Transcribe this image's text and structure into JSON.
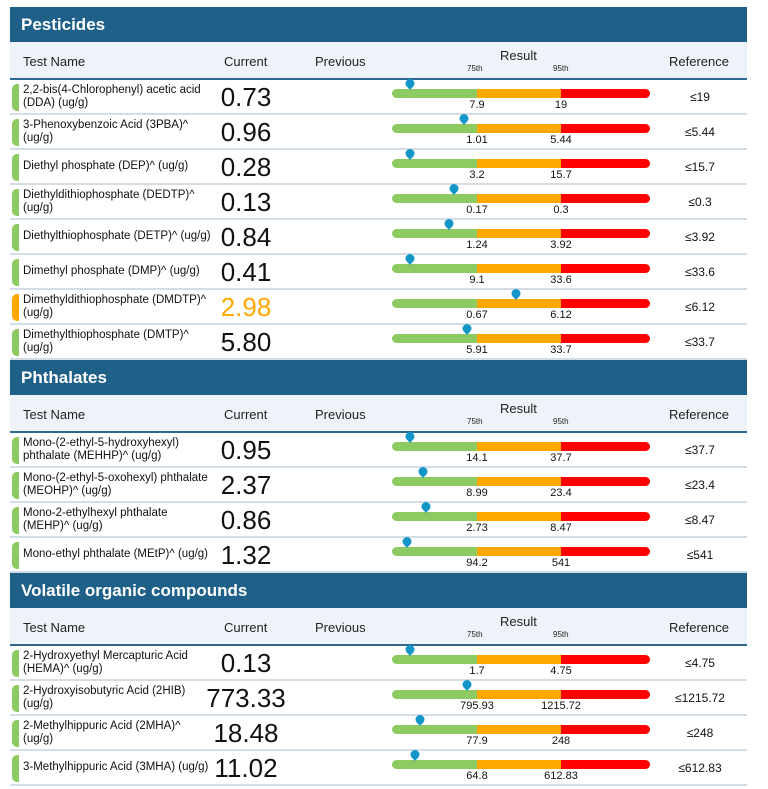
{
  "columns": {
    "test_name": "Test Name",
    "current": "Current",
    "previous": "Previous",
    "result": "Result",
    "p75": "75th",
    "p95": "95th",
    "reference": "Reference"
  },
  "colors": {
    "normal": "#8dcb62",
    "elevated": "#ffa800",
    "high": "#ff0000",
    "marker": "#1596c8",
    "header": "#1f6089"
  },
  "sections": [
    {
      "title": "Pesticides",
      "rows": [
        {
          "name": "2,2-bis(4-Chlorophenyl) acetic acid (DDA) (ug/g)",
          "current": "0.73",
          "p75": "7.9",
          "p95": "19",
          "reference": "≤19",
          "status": "normal",
          "marker": 0.07
        },
        {
          "name": "3-Phenoxybenzoic Acid (3PBA)^ (ug/g)",
          "current": "0.96",
          "p75": "1.01",
          "p95": "5.44",
          "reference": "≤5.44",
          "status": "normal",
          "marker": 0.28
        },
        {
          "name": "Diethyl phosphate (DEP)^ (ug/g)",
          "current": "0.28",
          "p75": "3.2",
          "p95": "15.7",
          "reference": "≤15.7",
          "status": "normal",
          "marker": 0.07
        },
        {
          "name": "Diethyldithiophosphate (DEDTP)^ (ug/g)",
          "current": "0.13",
          "p75": "0.17",
          "p95": "0.3",
          "reference": "≤0.3",
          "status": "normal",
          "marker": 0.24
        },
        {
          "name": "Diethylthiophosphate (DETP)^ (ug/g)",
          "current": "0.84",
          "p75": "1.24",
          "p95": "3.92",
          "reference": "≤3.92",
          "status": "normal",
          "marker": 0.22
        },
        {
          "name": "Dimethyl phosphate (DMP)^ (ug/g)",
          "current": "0.41",
          "p75": "9.1",
          "p95": "33.6",
          "reference": "≤33.6",
          "status": "normal",
          "marker": 0.07
        },
        {
          "name": "Dimethyldithiophosphate (DMDTP)^ (ug/g)",
          "current": "2.98",
          "p75": "0.67",
          "p95": "6.12",
          "reference": "≤6.12",
          "status": "elevated",
          "marker": 0.48
        },
        {
          "name": "Dimethylthiophosphate (DMTP)^ (ug/g)",
          "current": "5.80",
          "p75": "5.91",
          "p95": "33.7",
          "reference": "≤33.7",
          "status": "normal",
          "marker": 0.29
        }
      ]
    },
    {
      "title": "Phthalates",
      "rows": [
        {
          "name": "Mono-(2-ethyl-5-hydroxyhexyl) phthalate (MEHHP)^ (ug/g)",
          "current": "0.95",
          "p75": "14.1",
          "p95": "37.7",
          "reference": "≤37.7",
          "status": "normal",
          "marker": 0.07
        },
        {
          "name": "Mono-(2-ethyl-5-oxohexyl) phthalate (MEOHP)^ (ug/g)",
          "current": "2.37",
          "p75": "8.99",
          "p95": "23.4",
          "reference": "≤23.4",
          "status": "normal",
          "marker": 0.12
        },
        {
          "name": "Mono-2-ethylhexyl phthalate (MEHP)^ (ug/g)",
          "current": "0.86",
          "p75": "2.73",
          "p95": "8.47",
          "reference": "≤8.47",
          "status": "normal",
          "marker": 0.13
        },
        {
          "name": "Mono-ethyl phthalate (MEtP)^ (ug/g)",
          "current": "1.32",
          "p75": "94.2",
          "p95": "541",
          "reference": "≤541",
          "status": "normal",
          "marker": 0.06
        }
      ]
    },
    {
      "title": "Volatile organic compounds",
      "rows": [
        {
          "name": "2-Hydroxyethyl Mercapturic Acid (HEMA)^ (ug/g)",
          "current": "0.13",
          "p75": "1.7",
          "p95": "4.75",
          "reference": "≤4.75",
          "status": "normal",
          "marker": 0.07
        },
        {
          "name": "2-Hydroxyisobutyric Acid (2HIB) (ug/g)",
          "current": "773.33",
          "p75": "795.93",
          "p95": "1215.72",
          "reference": "≤1215.72",
          "status": "normal",
          "marker": 0.29
        },
        {
          "name": "2-Methylhippuric Acid (2MHA)^ (ug/g)",
          "current": "18.48",
          "p75": "77.9",
          "p95": "248",
          "reference": "≤248",
          "status": "normal",
          "marker": 0.11
        },
        {
          "name": "3-Methylhippuric Acid (3MHA) (ug/g)",
          "current": "11.02",
          "p75": "64.8",
          "p95": "612.83",
          "reference": "≤612.83",
          "status": "normal",
          "marker": 0.09
        }
      ]
    }
  ]
}
